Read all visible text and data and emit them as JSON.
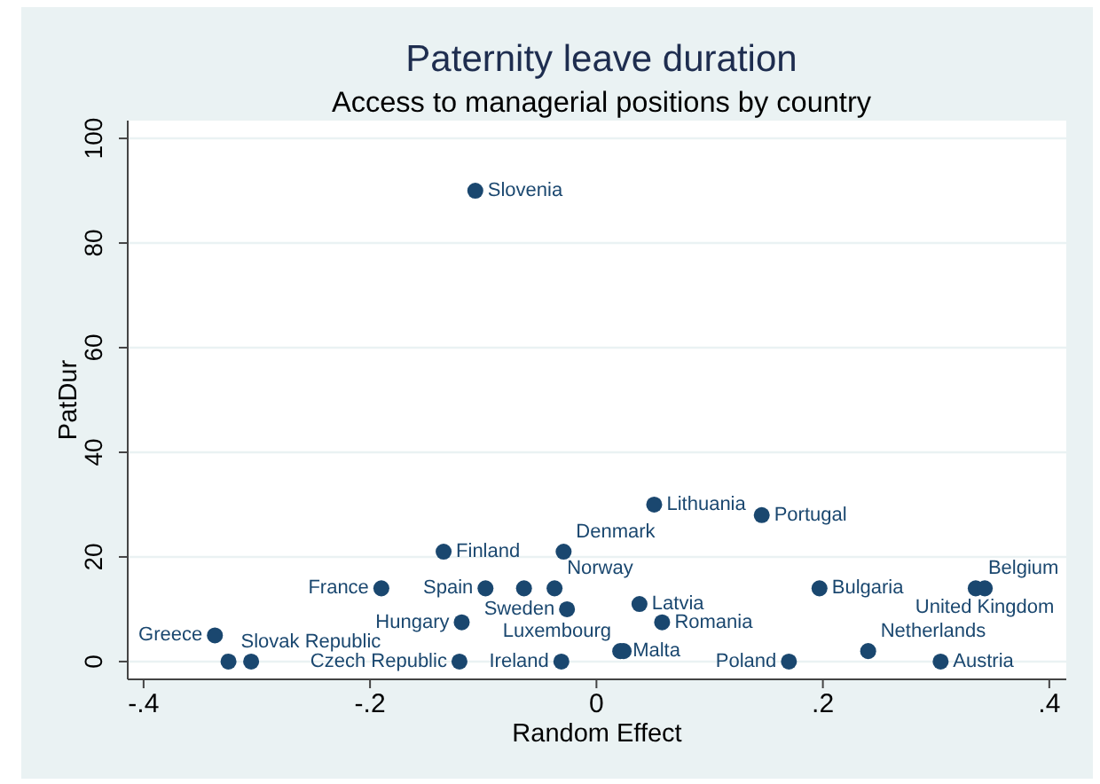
{
  "chart_data": {
    "type": "scatter",
    "title": "Paternity leave duration",
    "subtitle": "Access to managerial positions by country",
    "xlabel": "Random Effect",
    "ylabel": "PatDur",
    "x": [
      -0.107,
      0.051,
      0.146,
      -0.135,
      -0.029,
      -0.19,
      -0.098,
      -0.064,
      -0.037,
      0.197,
      0.335,
      0.343,
      -0.026,
      0.038,
      -0.119,
      0.058,
      -0.337,
      -0.325,
      -0.305,
      -0.121,
      -0.031,
      0.021,
      0.024,
      0.17,
      0.24,
      0.304
    ],
    "values": [
      90,
      30,
      28,
      21,
      21,
      14,
      14,
      14,
      14,
      14,
      14,
      14,
      10,
      11,
      7.5,
      7.5,
      5,
      0,
      0,
      0,
      0,
      2,
      2,
      0,
      2,
      0
    ],
    "color": "#1a476f",
    "marker": "circle",
    "annotations": [
      {
        "text": "Slovenia",
        "x": -0.107,
        "y": 90
      },
      {
        "text": "Lithuania",
        "x": 0.051,
        "y": 30
      },
      {
        "text": "Portugal",
        "x": 0.146,
        "y": 28
      },
      {
        "text": "Finland",
        "x": -0.135,
        "y": 21
      },
      {
        "text": "Denmark",
        "x": -0.029,
        "y": 21
      },
      {
        "text": "France",
        "x": -0.19,
        "y": 14
      },
      {
        "text": "Spain",
        "x": -0.098,
        "y": 14
      },
      {
        "text": "Norway",
        "x": -0.037,
        "y": 14
      },
      {
        "text": "Bulgaria",
        "x": 0.197,
        "y": 14
      },
      {
        "text": "Belgium",
        "x": 0.335,
        "y": 14
      },
      {
        "text": "United Kingdom",
        "x": 0.343,
        "y": 14
      },
      {
        "text": "Sweden",
        "x": -0.026,
        "y": 10
      },
      {
        "text": "Latvia",
        "x": 0.038,
        "y": 11
      },
      {
        "text": "Hungary",
        "x": -0.119,
        "y": 7.5
      },
      {
        "text": "Romania",
        "x": 0.058,
        "y": 7.5
      },
      {
        "text": "Greece",
        "x": -0.337,
        "y": 5
      },
      {
        "text": "Slovak Republic",
        "x": -0.325,
        "y": 0
      },
      {
        "text": "Czech Republic",
        "x": -0.121,
        "y": 0
      },
      {
        "text": "Ireland",
        "x": -0.031,
        "y": 0
      },
      {
        "text": "Malta",
        "x": 0.021,
        "y": 2
      },
      {
        "text": "Luxembourg",
        "x": 0.024,
        "y": 2
      },
      {
        "text": "Poland",
        "x": 0.17,
        "y": 0
      },
      {
        "text": "Netherlands",
        "x": 0.24,
        "y": 2
      },
      {
        "text": "Austria",
        "x": 0.304,
        "y": 0
      }
    ],
    "xlim": [
      -0.414,
      0.415
    ],
    "ylim": [
      -3.4,
      103.4
    ],
    "xticks": [
      {
        "value": -0.4,
        "label": "-.4"
      },
      {
        "value": -0.2,
        "label": "-.2"
      },
      0,
      {
        "value": 0.2,
        "label": ".2"
      },
      {
        "value": 0.4,
        "label": ".4"
      }
    ],
    "yticks": [
      0,
      20,
      40,
      60,
      80,
      100
    ],
    "grid": "y"
  }
}
